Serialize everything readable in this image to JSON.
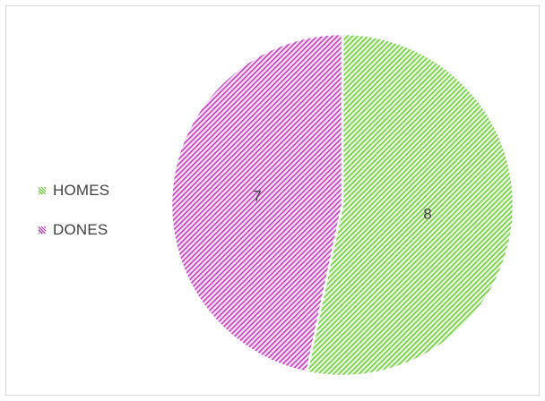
{
  "chart_data": {
    "type": "pie",
    "slices": [
      {
        "label": "HOMES",
        "value": 8,
        "color": "#6fcf3f",
        "pattern_bg": "#eaf9e0"
      },
      {
        "label": "DONES",
        "value": 7,
        "color": "#c33fbd",
        "pattern_bg": "#f6e0f4"
      }
    ],
    "legend_position": "left",
    "data_labels": true,
    "start_angle_deg": 0,
    "direction": "clockwise"
  }
}
